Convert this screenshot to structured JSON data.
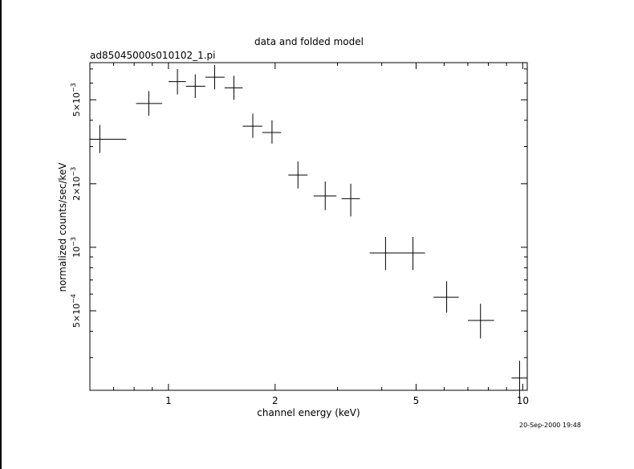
{
  "chart_data": {
    "type": "scatter",
    "title": "data and folded model",
    "subtitle": "ad85045000s010102_1.pi",
    "xlabel": "channel energy (keV)",
    "ylabel": "normalized counts/sec/keV",
    "x_scale": "log",
    "y_scale": "log",
    "xlim": [
      0.6,
      10.3
    ],
    "ylim": [
      0.00021,
      0.0075
    ],
    "x_ticks": [
      {
        "value": 1,
        "label": "1"
      },
      {
        "value": 2,
        "label": "2"
      },
      {
        "value": 5,
        "label": "5"
      },
      {
        "value": 10,
        "label": "10"
      }
    ],
    "y_ticks": [
      {
        "value": 0.0005,
        "mantissa": "5×10",
        "exponent": "−4"
      },
      {
        "value": 0.001,
        "mantissa": "10",
        "exponent": "−3"
      },
      {
        "value": 0.002,
        "mantissa": "2×10",
        "exponent": "−3"
      },
      {
        "value": 0.005,
        "mantissa": "5×10",
        "exponent": "−3"
      }
    ],
    "series": [
      {
        "points": [
          {
            "x": 0.64,
            "xlo": 0.6,
            "xhi": 0.76,
            "y": 0.00325,
            "ylo": 0.0028,
            "yhi": 0.0038
          },
          {
            "x": 0.88,
            "xlo": 0.81,
            "xhi": 0.96,
            "y": 0.0048,
            "ylo": 0.0042,
            "yhi": 0.0055
          },
          {
            "x": 1.06,
            "xlo": 1.0,
            "xhi": 1.12,
            "y": 0.0061,
            "ylo": 0.0053,
            "yhi": 0.007
          },
          {
            "x": 1.19,
            "xlo": 1.12,
            "xhi": 1.27,
            "y": 0.0058,
            "ylo": 0.0051,
            "yhi": 0.0066
          },
          {
            "x": 1.35,
            "xlo": 1.27,
            "xhi": 1.44,
            "y": 0.0064,
            "ylo": 0.0056,
            "yhi": 0.0073
          },
          {
            "x": 1.53,
            "xlo": 1.44,
            "xhi": 1.62,
            "y": 0.0057,
            "ylo": 0.005,
            "yhi": 0.0065
          },
          {
            "x": 1.73,
            "xlo": 1.62,
            "xhi": 1.84,
            "y": 0.00375,
            "ylo": 0.0033,
            "yhi": 0.0043
          },
          {
            "x": 1.96,
            "xlo": 1.84,
            "xhi": 2.08,
            "y": 0.0035,
            "ylo": 0.0031,
            "yhi": 0.004
          },
          {
            "x": 2.32,
            "xlo": 2.18,
            "xhi": 2.47,
            "y": 0.0022,
            "ylo": 0.0019,
            "yhi": 0.00255
          },
          {
            "x": 2.77,
            "xlo": 2.57,
            "xhi": 2.98,
            "y": 0.00175,
            "ylo": 0.0015,
            "yhi": 0.00205
          },
          {
            "x": 3.27,
            "xlo": 3.08,
            "xhi": 3.47,
            "y": 0.0017,
            "ylo": 0.0014,
            "yhi": 0.002
          },
          {
            "x": 4.1,
            "xlo": 3.7,
            "xhi": 4.5,
            "y": 0.00094,
            "ylo": 0.00078,
            "yhi": 0.00112
          },
          {
            "x": 4.9,
            "xlo": 4.5,
            "xhi": 5.3,
            "y": 0.00094,
            "ylo": 0.00078,
            "yhi": 0.00112
          },
          {
            "x": 6.1,
            "xlo": 5.6,
            "xhi": 6.6,
            "y": 0.00058,
            "ylo": 0.00049,
            "yhi": 0.00069
          },
          {
            "x": 7.6,
            "xlo": 7.0,
            "xhi": 8.3,
            "y": 0.00045,
            "ylo": 0.00037,
            "yhi": 0.00054
          },
          {
            "x": 9.8,
            "xlo": 9.3,
            "xhi": 10.3,
            "y": 0.00024,
            "ylo": 0.00019,
            "yhi": 0.00029
          }
        ]
      }
    ],
    "grid": false,
    "legend": "none"
  },
  "footer": {
    "timestamp": "20-Sep-2000 19:48"
  }
}
